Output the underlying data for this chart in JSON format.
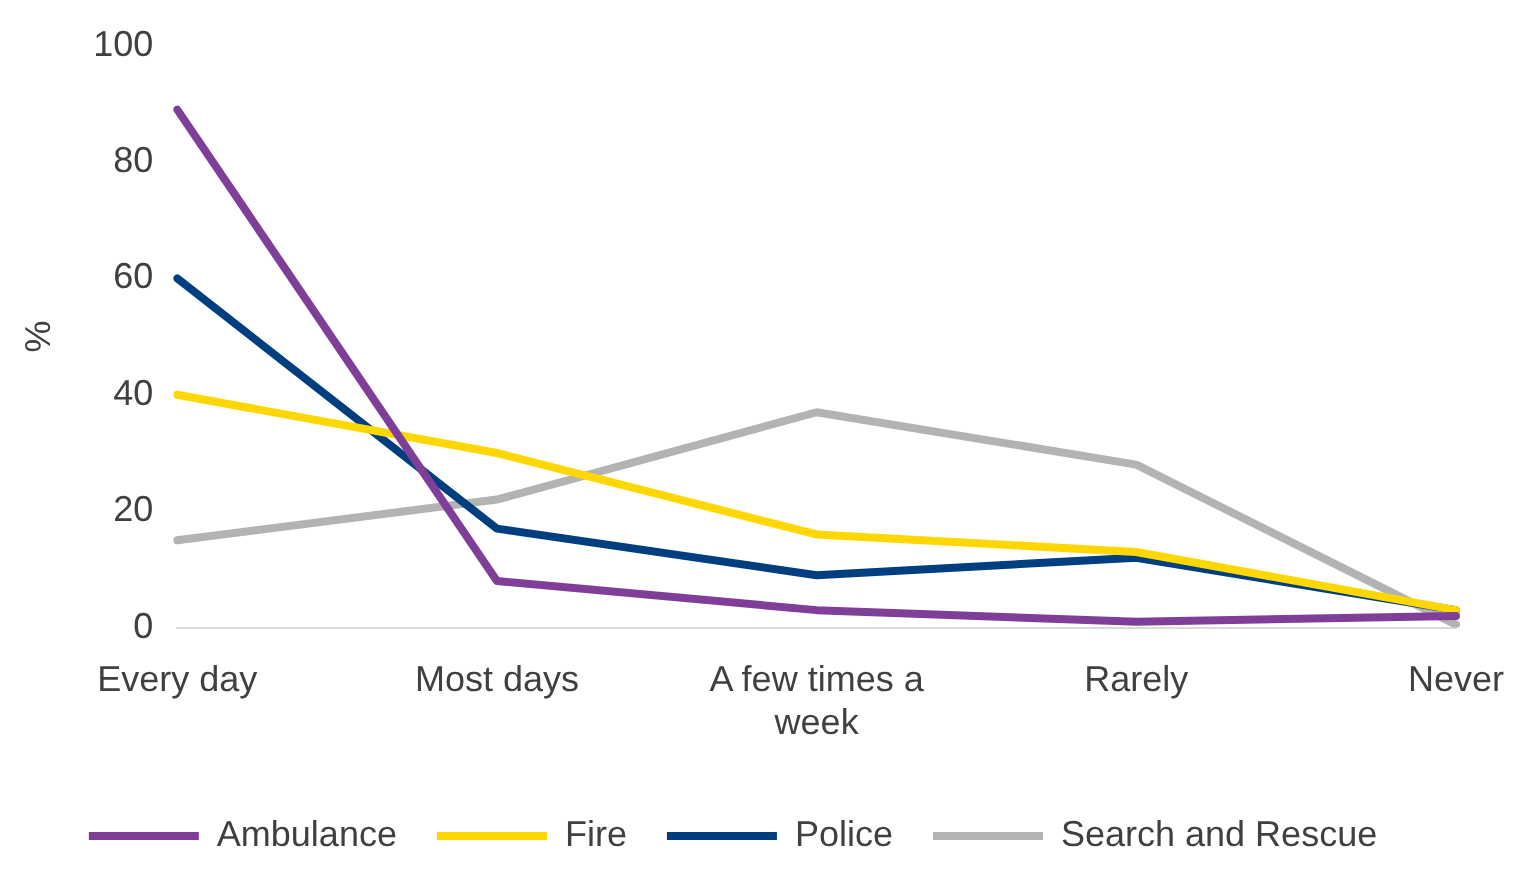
{
  "chart_data": {
    "type": "line",
    "ylabel": "%",
    "categories": [
      "Every day",
      "Most days",
      "A few times a week",
      "Rarely",
      "Never"
    ],
    "series": [
      {
        "name": "Ambulance",
        "color": "#7f3f98",
        "values": [
          89,
          8,
          3,
          1,
          2
        ]
      },
      {
        "name": "Fire",
        "color": "#ffd700",
        "values": [
          40,
          30,
          16,
          13,
          3
        ]
      },
      {
        "name": "Police",
        "color": "#003f7f",
        "values": [
          60,
          17,
          9,
          12,
          3
        ]
      },
      {
        "name": "Search and Rescue",
        "color": "#b3b3b3",
        "values": [
          15,
          22,
          37,
          28,
          0.5
        ]
      }
    ],
    "ylim": [
      0,
      100
    ],
    "yticks": [
      0,
      20,
      40,
      60,
      80,
      100
    ],
    "grid": false,
    "legend": "bottom",
    "marker": "none",
    "line_style": "solid"
  }
}
